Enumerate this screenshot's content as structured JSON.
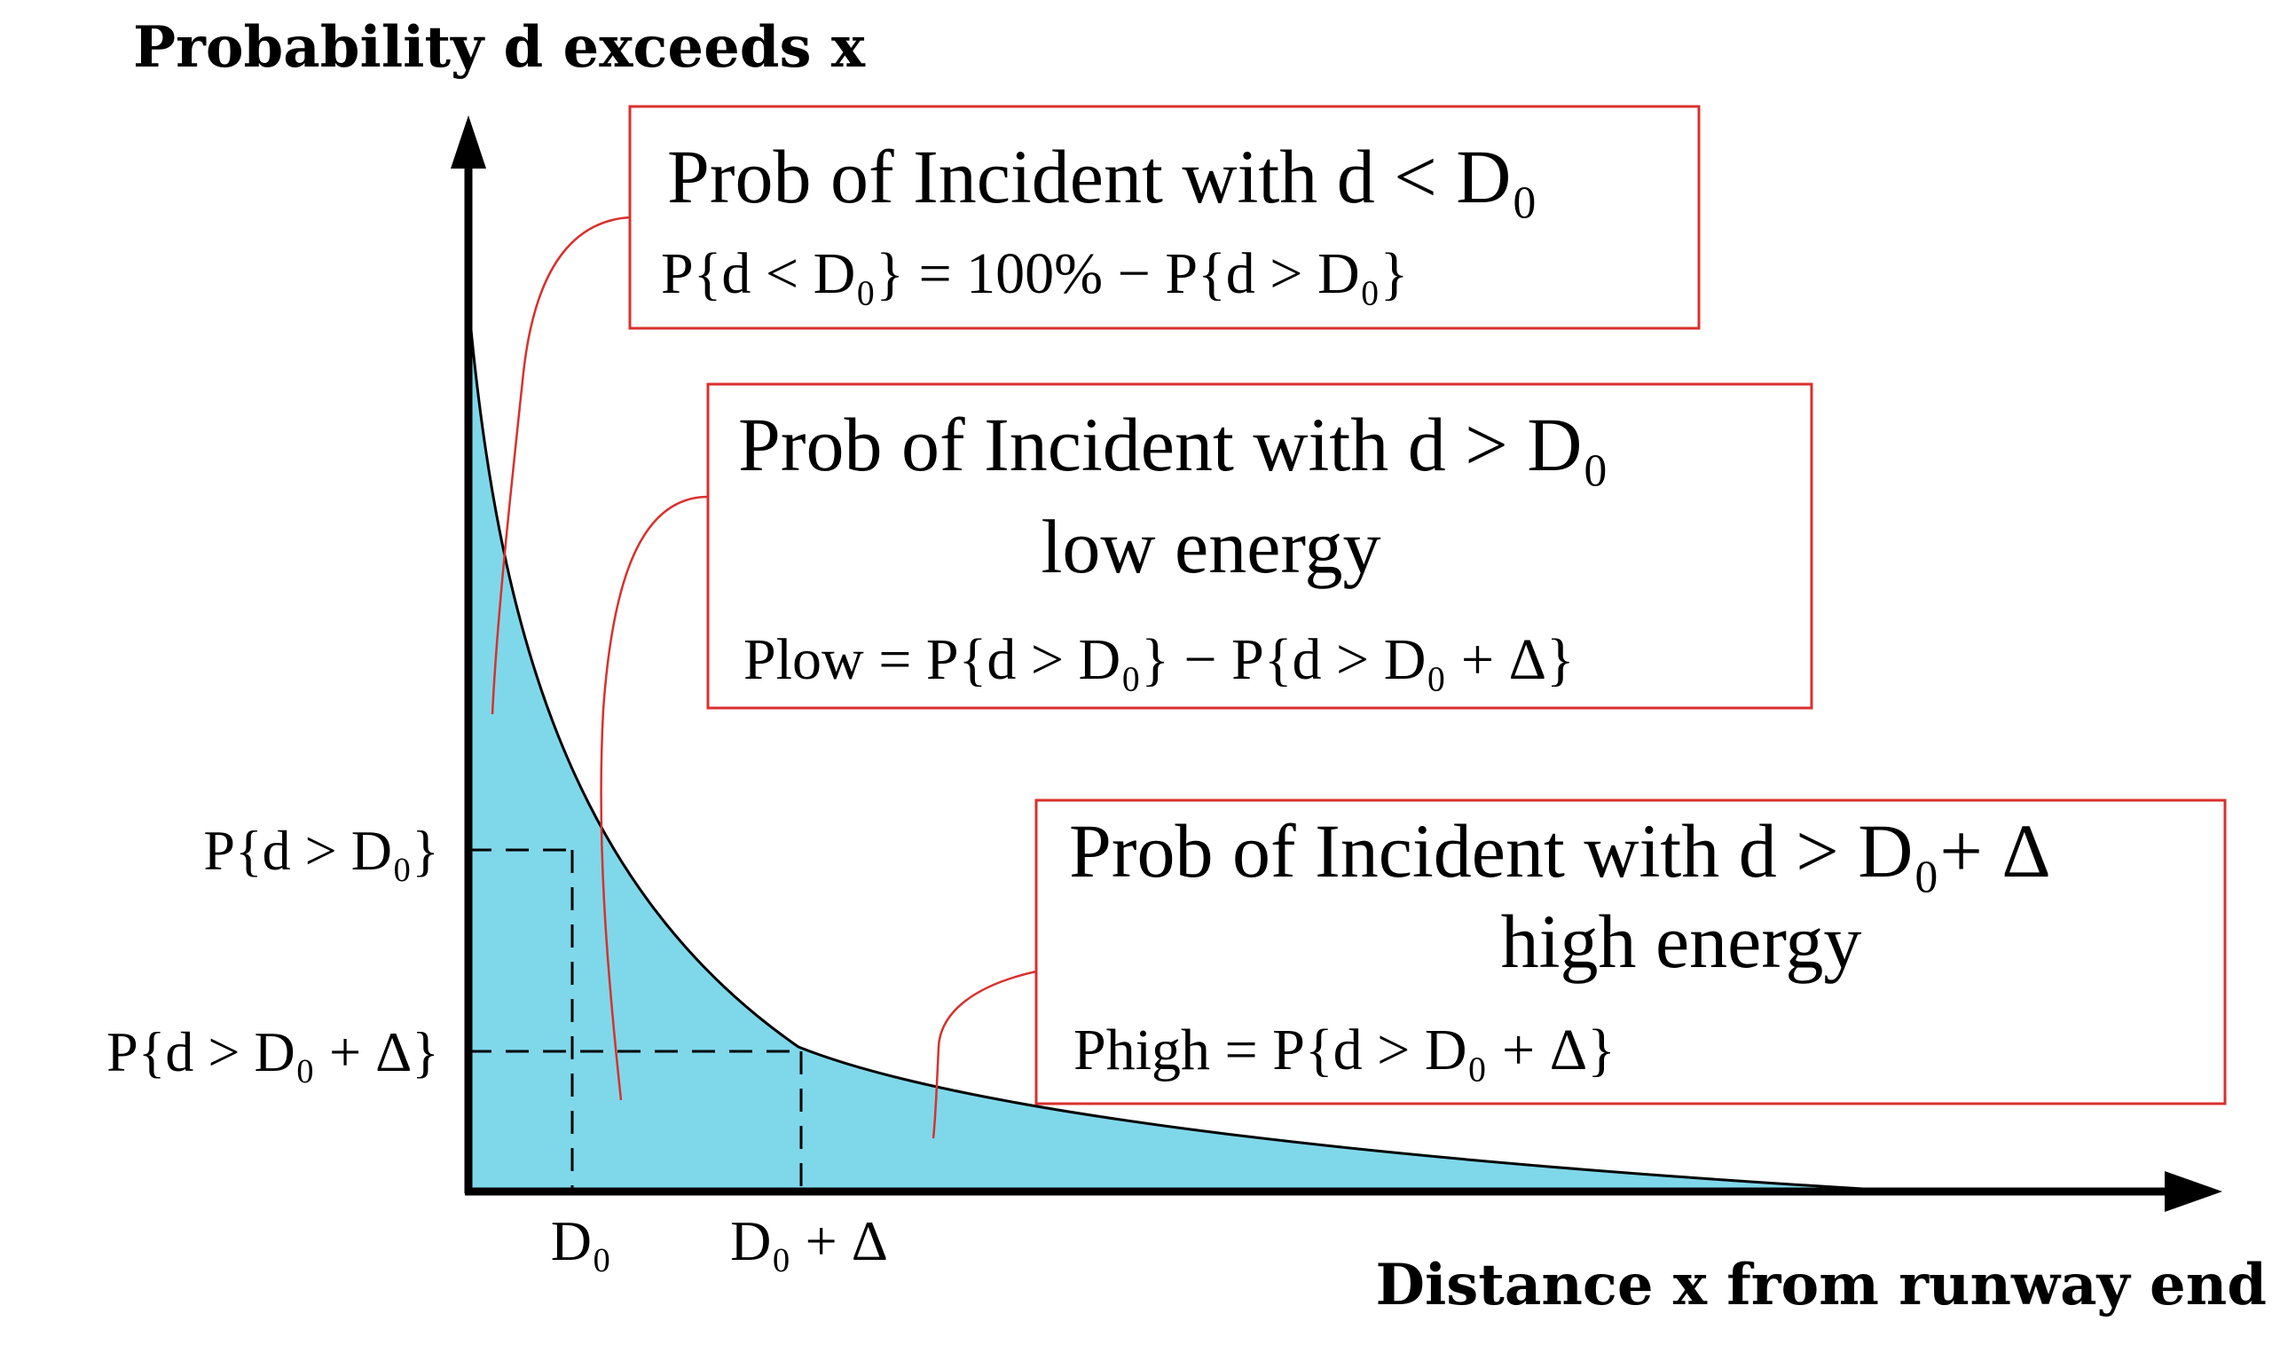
{
  "axes": {
    "y_title": "Probability d exceeds x",
    "x_title": "Distance x from runway end"
  },
  "y_ticks": {
    "p_d0": "P{d > D₀}",
    "p_d0_delta": "P{d > D₀ + Δ}"
  },
  "x_ticks": {
    "d0": "D₀",
    "d0_delta": "D₀ + Δ"
  },
  "boxes": {
    "incident_below": {
      "title": "Prob of Incident with d < D₀",
      "formula": "P{d < D₀} = 100% − P{d > D₀}"
    },
    "low_energy": {
      "title": "Prob of Incident with d > D₀",
      "subtitle": "low energy",
      "formula": "Plow = P{d > D₀} − P{d > D₀ + Δ}"
    },
    "high_energy": {
      "title": "Prob of Incident with d > D₀+ Δ",
      "subtitle": "high energy",
      "formula": "Phigh = P{d > D₀ + Δ}"
    }
  },
  "colors": {
    "area_fill": "#7fd8ea",
    "box_border": "#d9302c",
    "leader_line": "#d9302c",
    "axis": "#000000"
  }
}
